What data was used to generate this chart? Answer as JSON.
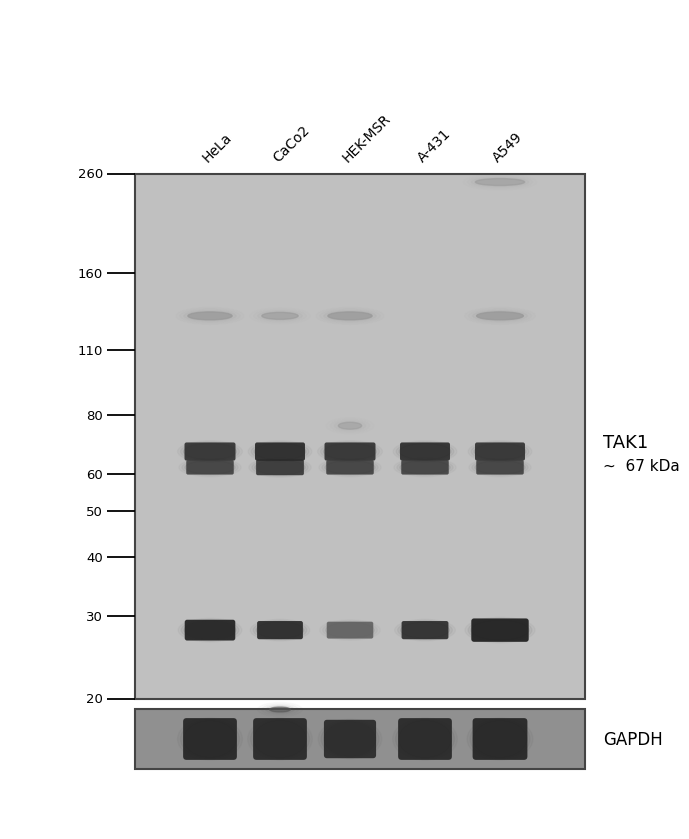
{
  "background_color": "#ffffff",
  "gel_bg_color": "#c0c0c0",
  "gapdh_bg_color": "#909090",
  "lane_labels": [
    "HeLa",
    "CaCo2",
    "HEK-MSR",
    "A-431",
    "A549"
  ],
  "mw_markers": [
    260,
    160,
    110,
    80,
    60,
    50,
    40,
    30,
    20
  ],
  "tak1_label": "TAK1",
  "tak1_kda": "~  67 kDa",
  "gapdh_label": "GAPDH",
  "band_color_dark": "#222222",
  "band_color_medium": "#555555",
  "band_color_light": "#888888",
  "band_color_very_light": "#999999"
}
